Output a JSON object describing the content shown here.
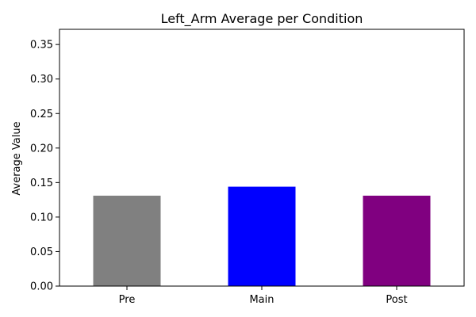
{
  "chart_data": {
    "type": "bar",
    "title": "Left_Arm Average per Condition",
    "xlabel": "",
    "ylabel": "Average Value",
    "categories": [
      "Pre",
      "Main",
      "Post"
    ],
    "values": [
      0.131,
      0.144,
      0.131
    ],
    "colors": [
      "#808080",
      "#0000ff",
      "#800080"
    ],
    "ylim": [
      0,
      0.372
    ],
    "yticks": [
      0.0,
      0.05,
      0.1,
      0.15,
      0.2,
      0.25,
      0.3,
      0.35
    ],
    "ytick_labels": [
      "0.00",
      "0.05",
      "0.10",
      "0.15",
      "0.20",
      "0.25",
      "0.30",
      "0.35"
    ],
    "grid": false,
    "legend": false
  }
}
